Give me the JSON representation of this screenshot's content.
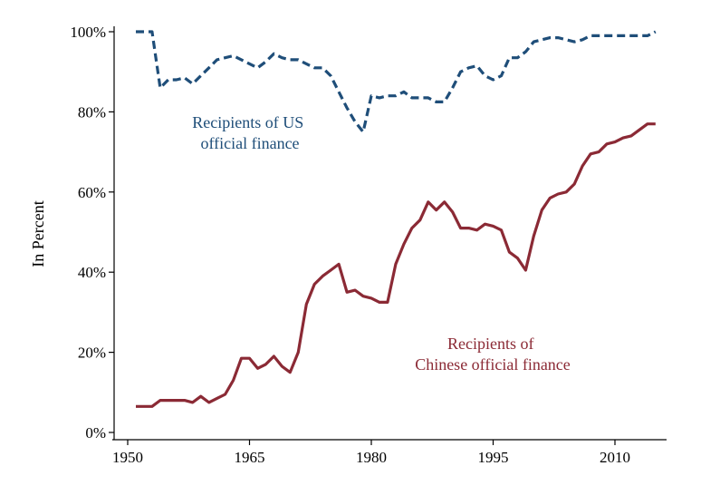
{
  "chart_data": {
    "type": "line",
    "ylabel": "In Percent",
    "xlabel": "",
    "title": "",
    "xlim": [
      1950,
      2015
    ],
    "ylim": [
      0,
      100
    ],
    "x_ticks": [
      1950,
      1965,
      1980,
      1995,
      2010
    ],
    "x_tick_labels": [
      "1950",
      "1965",
      "1980",
      "1995",
      "2010"
    ],
    "y_ticks": [
      0,
      20,
      40,
      60,
      80,
      100
    ],
    "y_tick_labels": [
      "0%",
      "20%",
      "40%",
      "60%",
      "80%",
      "100%"
    ],
    "grid": false,
    "legend": "none (direct series labels)",
    "colors": {
      "us": "#1f4e79",
      "china": "#8b2a35"
    },
    "series": [
      {
        "id": "us",
        "label_lines": [
          "Recipients of US",
          "official finance"
        ],
        "style": "dashed",
        "x": [
          1951,
          1952,
          1953,
          1954,
          1955,
          1956,
          1957,
          1958,
          1959,
          1960,
          1961,
          1962,
          1963,
          1964,
          1965,
          1966,
          1967,
          1968,
          1969,
          1970,
          1971,
          1972,
          1973,
          1974,
          1975,
          1976,
          1977,
          1978,
          1979,
          1980,
          1981,
          1982,
          1983,
          1984,
          1985,
          1986,
          1987,
          1988,
          1989,
          1990,
          1991,
          1992,
          1993,
          1994,
          1995,
          1996,
          1997,
          1998,
          1999,
          2000,
          2001,
          2002,
          2003,
          2004,
          2005,
          2006,
          2007,
          2008,
          2009,
          2010,
          2011,
          2012,
          2013,
          2014,
          2015
        ],
        "y": [
          100,
          100,
          100,
          86,
          88,
          88,
          88.5,
          87,
          89,
          91,
          93,
          93.5,
          94,
          93,
          92,
          91,
          92.5,
          94.5,
          93.5,
          93,
          93,
          92,
          91,
          91,
          89,
          85,
          81,
          77.5,
          75,
          84,
          83.5,
          84,
          84,
          85,
          83.5,
          83.5,
          83.5,
          82.5,
          82.5,
          86,
          90,
          91,
          91.5,
          89,
          88,
          89,
          93.5,
          93.5,
          95,
          97.5,
          98,
          98.5,
          98.5,
          98,
          97.5,
          98,
          99,
          99,
          99,
          99,
          99,
          99,
          99,
          99,
          100
        ]
      },
      {
        "id": "china",
        "label_lines": [
          "Recipients of",
          "Chinese official finance"
        ],
        "style": "solid",
        "x": [
          1951,
          1952,
          1953,
          1954,
          1955,
          1956,
          1957,
          1958,
          1959,
          1960,
          1961,
          1962,
          1963,
          1964,
          1965,
          1966,
          1967,
          1968,
          1969,
          1970,
          1971,
          1972,
          1973,
          1974,
          1975,
          1976,
          1977,
          1978,
          1979,
          1980,
          1981,
          1982,
          1983,
          1984,
          1985,
          1986,
          1987,
          1988,
          1989,
          1990,
          1991,
          1992,
          1993,
          1994,
          1995,
          1996,
          1997,
          1998,
          1999,
          2000,
          2001,
          2002,
          2003,
          2004,
          2005,
          2006,
          2007,
          2008,
          2009,
          2010,
          2011,
          2012,
          2013,
          2014,
          2015
        ],
        "y": [
          6.5,
          6.5,
          6.5,
          8,
          8,
          8,
          8,
          7.5,
          9,
          7.5,
          8.5,
          9.5,
          13,
          18.5,
          18.5,
          16,
          17,
          19,
          16.5,
          15,
          20,
          32,
          37,
          39,
          40.5,
          42,
          35,
          35.5,
          34,
          33.5,
          32.5,
          32.5,
          42,
          47,
          51,
          53,
          57.5,
          55.5,
          57.5,
          55,
          51,
          51,
          50.5,
          52,
          51.5,
          50.5,
          45,
          43.5,
          40.5,
          49,
          55.5,
          58.5,
          59.5,
          60,
          62,
          66.5,
          69.5,
          70,
          72,
          72.5,
          73.5,
          74,
          75.5,
          77,
          77
        ]
      }
    ]
  }
}
